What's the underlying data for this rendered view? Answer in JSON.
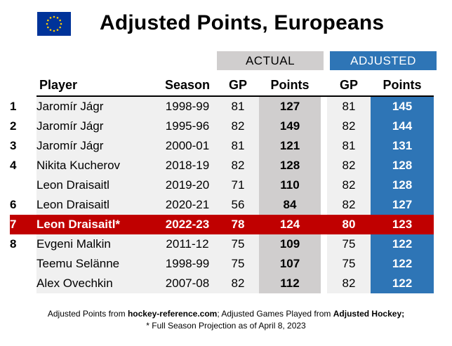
{
  "title": "Adjusted Points, Europeans",
  "flag_icon": "eu-flag-icon",
  "colors": {
    "actual_header_bg": "#d0cece",
    "adjusted_header_bg": "#2e75b6",
    "highlight_row_bg": "#c00000"
  },
  "group_headers": {
    "actual": "ACTUAL",
    "adjusted": "ADJUSTED"
  },
  "columns": {
    "player": "Player",
    "season": "Season",
    "gp": "GP",
    "points": "Points",
    "adj_gp": "GP",
    "adj_points": "Points"
  },
  "rows": [
    {
      "rank": "1",
      "player": "Jaromír Jágr",
      "season": "1998-99",
      "gp": "81",
      "points": "127",
      "adj_gp": "81",
      "adj_points": "145"
    },
    {
      "rank": "2",
      "player": "Jaromír Jágr",
      "season": "1995-96",
      "gp": "82",
      "points": "149",
      "adj_gp": "82",
      "adj_points": "144"
    },
    {
      "rank": "3",
      "player": "Jaromír Jágr",
      "season": "2000-01",
      "gp": "81",
      "points": "121",
      "adj_gp": "81",
      "adj_points": "131"
    },
    {
      "rank": "4",
      "player": "Nikita Kucherov",
      "season": "2018-19",
      "gp": "82",
      "points": "128",
      "adj_gp": "82",
      "adj_points": "128"
    },
    {
      "rank": "",
      "player": "Leon Draisaitl",
      "season": "2019-20",
      "gp": "71",
      "points": "110",
      "adj_gp": "82",
      "adj_points": "128"
    },
    {
      "rank": "6",
      "player": "Leon Draisaitl",
      "season": "2020-21",
      "gp": "56",
      "points": "84",
      "adj_gp": "82",
      "adj_points": "127"
    },
    {
      "rank": "7",
      "player": "Leon Draisaitl*",
      "season": "2022-23",
      "gp": "78",
      "points": "124",
      "adj_gp": "80",
      "adj_points": "123"
    },
    {
      "rank": "8",
      "player": "Evgeni Malkin",
      "season": "2011-12",
      "gp": "75",
      "points": "109",
      "adj_gp": "75",
      "adj_points": "122"
    },
    {
      "rank": "",
      "player": "Teemu Selänne",
      "season": "1998-99",
      "gp": "75",
      "points": "107",
      "adj_gp": "75",
      "adj_points": "122"
    },
    {
      "rank": "",
      "player": "Alex Ovechkin",
      "season": "2007-08",
      "gp": "82",
      "points": "112",
      "adj_gp": "82",
      "adj_points": "122"
    }
  ],
  "footnote": {
    "line1_part1": "Adjusted Points from ",
    "line1_source1": "hockey-reference.com",
    "line1_part2": "; Adjusted Games Played from ",
    "line1_source2": "Adjusted Hockey;",
    "line2": "* Full Season Projection as of April 8, 2023"
  }
}
